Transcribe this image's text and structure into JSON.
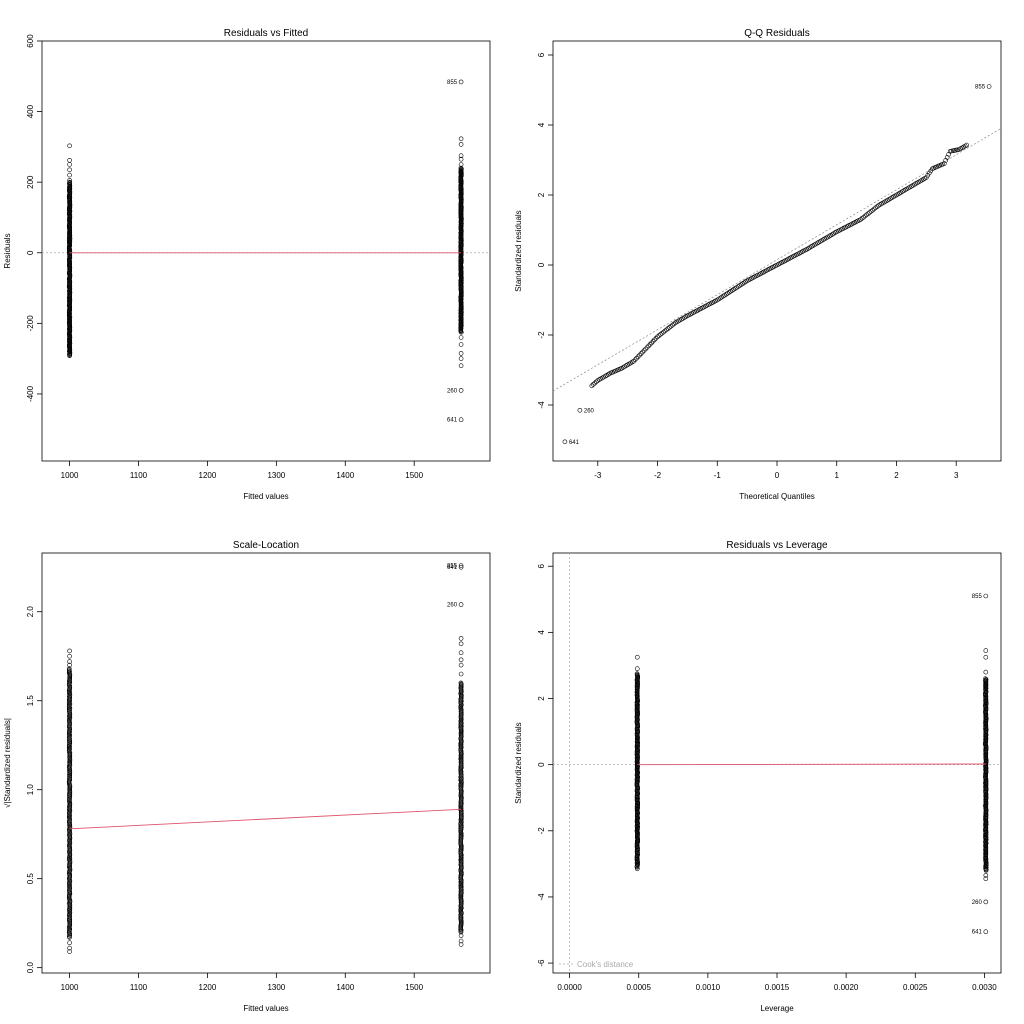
{
  "chart_data": [
    {
      "type": "scatter",
      "title": "Residuals vs Fitted",
      "xlabel": "Fitted values",
      "ylabel": "Residuals",
      "xlim": [
        960,
        1610
      ],
      "ylim": [
        -590,
        600
      ],
      "xticks": [
        1000,
        1100,
        1200,
        1300,
        1400,
        1500
      ],
      "yticks": [
        -400,
        -200,
        0,
        200,
        400,
        600
      ],
      "groups": [
        {
          "x": 1000,
          "ymin": -290,
          "ymax": 200,
          "extra": [
            205,
            220,
            235,
            250,
            262,
            303,
            -292,
            -280
          ]
        },
        {
          "x": 1568,
          "ymin": -225,
          "ymax": 240,
          "extra": [
            250,
            265,
            275,
            307,
            323,
            -240,
            -260,
            -285,
            -300,
            -320
          ]
        }
      ],
      "outliers": [
        {
          "label": "855",
          "x": 1568,
          "y": 484
        },
        {
          "label": "260",
          "x": 1568,
          "y": -390
        },
        {
          "label": "641",
          "x": 1568,
          "y": -473
        }
      ],
      "reference_line": {
        "y": 0
      },
      "smooth_line": {
        "x": [
          1000,
          1568
        ],
        "y": [
          0,
          0
        ]
      }
    },
    {
      "type": "scatter",
      "title": "Q-Q Residuals",
      "xlabel": "Theoretical Quantiles",
      "ylabel": "Standardized residuals",
      "xlim": [
        -3.75,
        3.75
      ],
      "ylim": [
        -5.6,
        6.4
      ],
      "xticks": [
        -3,
        -2,
        -1,
        0,
        1,
        2,
        3
      ],
      "yticks": [
        -4,
        -2,
        0,
        2,
        4,
        6
      ],
      "qq_segments": [
        [
          -3.1,
          -3.45
        ],
        [
          -3.0,
          -3.3
        ],
        [
          -2.9,
          -3.2
        ],
        [
          -2.8,
          -3.1
        ],
        [
          -2.6,
          -2.95
        ],
        [
          -2.4,
          -2.75
        ],
        [
          -2.2,
          -2.4
        ],
        [
          -2.0,
          -2.05
        ],
        [
          -1.7,
          -1.65
        ],
        [
          -1.5,
          -1.45
        ],
        [
          -1.0,
          -1.0
        ],
        [
          -0.5,
          -0.45
        ],
        [
          0.0,
          0.0
        ],
        [
          0.5,
          0.45
        ],
        [
          1.0,
          0.95
        ],
        [
          1.4,
          1.3
        ],
        [
          1.7,
          1.7
        ],
        [
          2.0,
          2.0
        ],
        [
          2.3,
          2.3
        ],
        [
          2.5,
          2.5
        ],
        [
          2.6,
          2.75
        ],
        [
          2.8,
          2.9
        ],
        [
          2.9,
          3.25
        ],
        [
          3.05,
          3.3
        ],
        [
          3.2,
          3.45
        ]
      ],
      "outliers": [
        {
          "label": "855",
          "x": 3.55,
          "y": 5.1
        },
        {
          "label": "260",
          "x": -3.3,
          "y": -4.15
        },
        {
          "label": "641",
          "x": -3.55,
          "y": -5.05
        }
      ],
      "reference_line": {
        "x": [
          -3.75,
          3.75
        ],
        "y": [
          -3.6,
          3.9
        ]
      }
    },
    {
      "type": "scatter",
      "title": "Scale-Location",
      "xlabel": "Fitted values",
      "ylabel": "√|Standardized residuals|",
      "xlim": [
        960,
        1610
      ],
      "ylim": [
        -0.03,
        2.33
      ],
      "xticks": [
        1000,
        1100,
        1200,
        1300,
        1400,
        1500
      ],
      "yticks": [
        0.0,
        0.5,
        1.0,
        1.5,
        2.0
      ],
      "groups": [
        {
          "x": 1000,
          "ymin": 0.17,
          "ymax": 1.68,
          "extra": [
            0.09,
            0.11,
            0.14,
            1.7,
            1.72,
            1.75,
            1.78
          ]
        },
        {
          "x": 1568,
          "ymin": 0.2,
          "ymax": 1.6,
          "extra": [
            0.13,
            0.15,
            0.18,
            1.65,
            1.7,
            1.73,
            1.77,
            1.82,
            1.85
          ]
        }
      ],
      "outliers": [
        {
          "label": "855",
          "x": 1568,
          "y": 2.26
        },
        {
          "label": "641",
          "x": 1568,
          "y": 2.25
        },
        {
          "label": "260",
          "x": 1568,
          "y": 2.04
        }
      ],
      "smooth_line": {
        "x": [
          1000,
          1568
        ],
        "y": [
          0.78,
          0.89
        ]
      }
    },
    {
      "type": "scatter",
      "title": "Residuals vs Leverage",
      "xlabel": "Leverage",
      "ylabel": "Standardized residuals",
      "xlim": [
        -0.00012,
        0.00312
      ],
      "ylim": [
        -6.3,
        6.4
      ],
      "xticks": [
        0.0,
        0.0005,
        0.001,
        0.0015,
        0.002,
        0.0025,
        0.003
      ],
      "xtick_labels": [
        "0.0000",
        "0.0005",
        "0.0010",
        "0.0015",
        "0.0020",
        "0.0025",
        "0.0030"
      ],
      "yticks": [
        -6,
        -4,
        -2,
        0,
        2,
        4,
        6
      ],
      "groups": [
        {
          "x": 0.00049,
          "ymin": -3.1,
          "ymax": 2.75,
          "extra": [
            3.25,
            2.9,
            -3.15
          ]
        },
        {
          "x": 0.00301,
          "ymin": -3.2,
          "ymax": 2.6,
          "extra": [
            2.8,
            3.25,
            3.45,
            -3.35,
            -3.45
          ]
        }
      ],
      "outliers": [
        {
          "label": "855",
          "x": 0.00301,
          "y": 5.1
        },
        {
          "label": "260",
          "x": 0.00301,
          "y": -4.15
        },
        {
          "label": "641",
          "x": 0.00301,
          "y": -5.05
        }
      ],
      "reference_line": {
        "y": 0
      },
      "vertical_reference": {
        "x": 0
      },
      "smooth_line": {
        "x": [
          0.00049,
          0.00301
        ],
        "y": [
          0.0,
          0.02
        ]
      },
      "legend": {
        "label": "Cook's distance",
        "position": "bottom-left"
      }
    }
  ]
}
